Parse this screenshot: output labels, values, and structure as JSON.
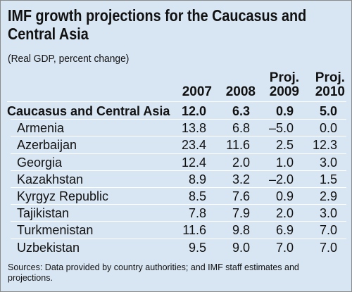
{
  "title_line1": "IMF growth projections for the Caucasus and",
  "title_line2": "Central Asia",
  "subtitle": "(Real GDP, percent change)",
  "columns": [
    {
      "top": "",
      "bottom": "2007"
    },
    {
      "top": "",
      "bottom": "2008"
    },
    {
      "top": "Proj.",
      "bottom": "2009"
    },
    {
      "top": "Proj.",
      "bottom": "2010"
    }
  ],
  "note": "Sources: Data provided by country authorities; and IMF staff estimates and projections.",
  "chart_data": {
    "type": "table",
    "title": "IMF growth projections for the Caucasus and Central Asia",
    "subtitle": "(Real GDP, percent change)",
    "columns": [
      "2007",
      "2008",
      "Proj. 2009",
      "Proj. 2010"
    ],
    "rows": [
      {
        "label": "Caucasus and Central Asia",
        "values": [
          "12.0",
          "6.3",
          "0.9",
          "5.0"
        ]
      },
      {
        "label": "Armenia",
        "values": [
          "13.8",
          "6.8",
          "–5.0",
          "0.0"
        ]
      },
      {
        "label": "Azerbaijan",
        "values": [
          "23.4",
          "11.6",
          "2.5",
          "12.3"
        ]
      },
      {
        "label": "Georgia",
        "values": [
          "12.4",
          "2.0",
          "1.0",
          "3.0"
        ]
      },
      {
        "label": "Kazakhstan",
        "values": [
          "8.9",
          "3.2",
          "–2.0",
          "1.5"
        ]
      },
      {
        "label": "Kyrgyz Republic",
        "values": [
          "8.5",
          "7.6",
          "0.9",
          "2.9"
        ]
      },
      {
        "label": "Tajikistan",
        "values": [
          "7.8",
          "7.9",
          "2.0",
          "3.0"
        ]
      },
      {
        "label": "Turkmenistan",
        "values": [
          "11.6",
          "9.8",
          "6.9",
          "7.0"
        ]
      },
      {
        "label": "Uzbekistan",
        "values": [
          "9.5",
          "9.0",
          "7.0",
          "7.0"
        ]
      }
    ]
  }
}
